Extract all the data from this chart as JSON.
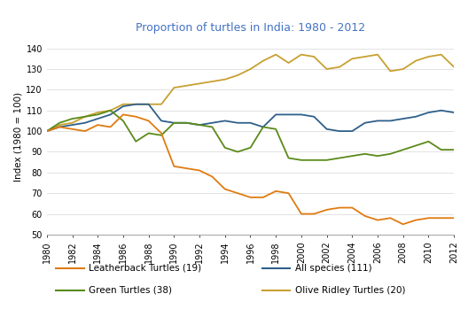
{
  "title": "Proportion of turtles in India: 1980 - 2012",
  "ylabel": "Index (1980 = 100)",
  "ylim": [
    50,
    145
  ],
  "yticks": [
    50,
    60,
    70,
    80,
    90,
    100,
    110,
    120,
    130,
    140
  ],
  "years": [
    1980,
    1981,
    1982,
    1983,
    1984,
    1985,
    1986,
    1987,
    1988,
    1989,
    1990,
    1991,
    1992,
    1993,
    1994,
    1995,
    1996,
    1997,
    1998,
    1999,
    2000,
    2001,
    2002,
    2003,
    2004,
    2005,
    2006,
    2007,
    2008,
    2009,
    2010,
    2011,
    2012
  ],
  "all_species": [
    100,
    102,
    103,
    104,
    106,
    108,
    112,
    113,
    113,
    105,
    104,
    104,
    103,
    104,
    105,
    104,
    104,
    102,
    108,
    108,
    108,
    107,
    101,
    100,
    100,
    104,
    105,
    105,
    106,
    107,
    109,
    110,
    109
  ],
  "leatherback": [
    100,
    102,
    101,
    100,
    103,
    102,
    108,
    107,
    105,
    99,
    83,
    82,
    81,
    78,
    72,
    70,
    68,
    68,
    71,
    70,
    60,
    60,
    62,
    63,
    63,
    59,
    57,
    58,
    55,
    57,
    58,
    58,
    58
  ],
  "green": [
    100,
    104,
    106,
    107,
    108,
    110,
    105,
    95,
    99,
    98,
    104,
    104,
    103,
    102,
    92,
    90,
    92,
    102,
    101,
    87,
    86,
    86,
    86,
    87,
    88,
    89,
    88,
    89,
    91,
    93,
    95,
    91,
    91
  ],
  "olive_ridley": [
    100,
    103,
    104,
    107,
    109,
    110,
    113,
    113,
    113,
    113,
    121,
    122,
    123,
    124,
    125,
    127,
    130,
    134,
    137,
    133,
    137,
    136,
    130,
    131,
    135,
    136,
    137,
    129,
    130,
    134,
    136,
    137,
    131
  ],
  "colors": {
    "all_species": "#2E5F8A",
    "leatherback": "#E07B10",
    "green": "#5A8A1A",
    "olive_ridley": "#C8A030"
  },
  "legend_order": [
    "leatherback",
    "all_species",
    "green",
    "olive_ridley"
  ],
  "legend_labels": {
    "leatherback": "Leatherback Turtles (19)",
    "all_species": "All species (111)",
    "green": "Green Turtles (38)",
    "olive_ridley": "Olive Ridley Turtles (20)"
  },
  "title_color": "#4472C4",
  "background_color": "#FFFFFF",
  "xticks": [
    1980,
    1982,
    1984,
    1986,
    1988,
    1990,
    1992,
    1994,
    1996,
    1998,
    2000,
    2002,
    2004,
    2006,
    2008,
    2010,
    2012
  ]
}
